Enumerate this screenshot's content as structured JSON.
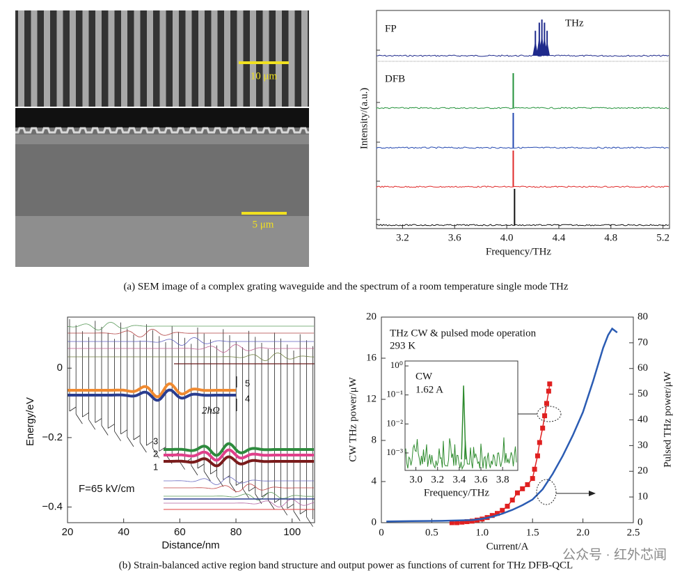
{
  "panel_a": {
    "sem": {
      "scale_bars": [
        "10 μm",
        "5 μm"
      ]
    },
    "spectrum": {
      "xlabel": "Frequency/THz",
      "ylabel": "Intensity/(a.u.)",
      "xlim": [
        3.0,
        5.25
      ],
      "xticks": [
        3.2,
        3.6,
        {
          "value": 4.0,
          "label": "4.0"
        },
        4.4,
        4.8,
        5.2
      ],
      "labels": [
        "FP",
        "THz",
        "DFB"
      ],
      "series": [
        {
          "color": "#1f2a8c",
          "peaks": [
            4.22,
            4.25,
            4.27,
            4.29,
            4.31
          ]
        },
        {
          "color": "#23923a",
          "peaks": [
            4.05
          ]
        },
        {
          "color": "#2448b0",
          "peaks": [
            4.05
          ]
        },
        {
          "color": "#e02a2a",
          "peaks": [
            4.05
          ]
        },
        {
          "color": "#111111",
          "peaks": [
            4.06
          ]
        }
      ]
    }
  },
  "caption_a": "(a) SEM image of a complex grating waveguide and the spectrum of a room temperature single mode THz",
  "band": {
    "xlabel": "Distance/nm",
    "ylabel": "Energy/eV",
    "xlim": [
      20,
      108
    ],
    "xticks": [
      20,
      40,
      60,
      80,
      100
    ],
    "ylim": [
      -0.445,
      0.147
    ],
    "yticks": [
      0,
      {
        "value": -0.2,
        "label": "−0.2"
      },
      {
        "value": -0.4,
        "label": "−0.4"
      }
    ],
    "field": "F=65 kV/cm",
    "level_labels": [
      "5",
      "4",
      "3",
      "2",
      "1"
    ],
    "splitting": "2ħΩ"
  },
  "power": {
    "xlabel": "Current/A",
    "ylabel": "CW THz power/μW",
    "y2label": "Pulsed THz power/μW",
    "xlim": [
      0,
      2.5
    ],
    "xticks": [
      0,
      0.5,
      {
        "value": 1,
        "label": "1.0"
      },
      1.5,
      {
        "value": 2,
        "label": "2.0"
      },
      2.5
    ],
    "ylim": [
      0,
      20
    ],
    "yticks": [
      0,
      4,
      8,
      12,
      16,
      20
    ],
    "y2lim": [
      0,
      80
    ],
    "y2ticks": [
      0,
      10,
      20,
      30,
      40,
      50,
      60,
      70,
      80
    ],
    "annotations": [
      "THz CW & pulsed mode operation",
      "293 K"
    ],
    "series": [
      {
        "color": "#e02020",
        "x": [
          0.7,
          0.75,
          0.8,
          0.85,
          0.9,
          0.95,
          1.0,
          1.05,
          1.1,
          1.15,
          1.2,
          1.25,
          1.3,
          1.35,
          1.4,
          1.45,
          1.5,
          1.52,
          1.55,
          1.57,
          1.6,
          1.62,
          1.64,
          1.66,
          1.67
        ],
        "values": [
          0,
          0,
          0.05,
          0.1,
          0.15,
          0.25,
          0.35,
          0.5,
          0.7,
          0.9,
          1.2,
          1.6,
          2.2,
          2.9,
          3.3,
          3.7,
          4.3,
          5.2,
          6.5,
          7.8,
          9.2,
          10.4,
          11.6,
          12.8,
          13.5
        ]
      },
      {
        "color": "#2b5cb3",
        "axis": "y2",
        "x": [
          0.05,
          0.3,
          0.6,
          0.9,
          1.0,
          1.1,
          1.2,
          1.3,
          1.4,
          1.5,
          1.6,
          1.7,
          1.8,
          1.9,
          2.0,
          2.1,
          2.2,
          2.25,
          2.29,
          2.34
        ],
        "values": [
          0.5,
          0.6,
          0.7,
          1.0,
          1.5,
          2.3,
          3.5,
          5,
          6.8,
          9,
          13,
          19,
          26,
          34,
          43,
          55,
          68,
          73,
          75.5,
          74
        ]
      }
    ],
    "inset": {
      "annotations": [
        "CW",
        "1.62 A"
      ],
      "xlabel": "Frequency/THz",
      "xlim": [
        2.9,
        3.94
      ],
      "xticks": [
        {
          "value": 3,
          "label": "3.0"
        },
        3.2,
        3.4,
        3.6,
        3.8
      ],
      "ylim": [
        0.00025,
        1.48
      ],
      "log": true,
      "yticks": [
        {
          "value": 1,
          "label": "10⁰"
        },
        {
          "value": 0.1,
          "label": "10⁻¹"
        },
        {
          "value": 0.01,
          "label": "10⁻²"
        },
        {
          "value": 0.001,
          "label": "10⁻³"
        }
      ],
      "color": "#2e8b2e",
      "peak_x": 3.44,
      "peak_y": 0.21
    }
  },
  "caption_b": "(b) Strain-balanced active region band structure and output power as functions of current for THz DFB-QCL",
  "watermark": "公众号 · 红外芯闻"
}
